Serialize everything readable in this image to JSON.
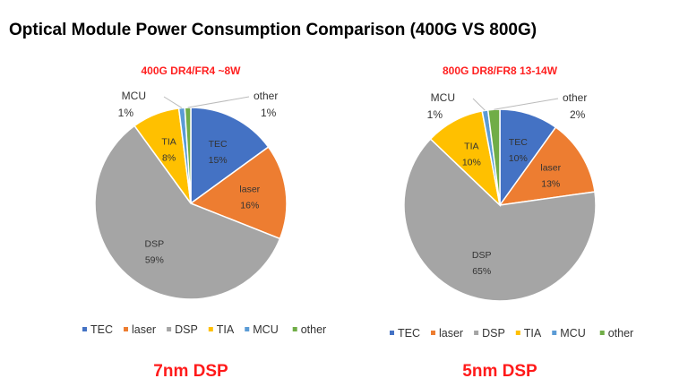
{
  "title": "Optical Module Power Consumption Comparison (400G VS 800G)",
  "colors": {
    "TEC": "#4472c4",
    "laser": "#ed7d31",
    "DSP": "#a5a5a5",
    "TIA": "#ffc000",
    "MCU": "#5b9bd5",
    "other": "#70ad47"
  },
  "chart_data": [
    {
      "type": "pie",
      "title": "400G DR4/FR4 ~8W",
      "caption": "7nm DSP",
      "categories": [
        "TEC",
        "laser",
        "DSP",
        "TIA",
        "MCU",
        "other"
      ],
      "values": [
        15,
        16,
        59,
        8,
        1,
        1
      ],
      "labels": [
        "15%",
        "16%",
        "59%",
        "8%",
        "1%",
        "1%"
      ],
      "start": "12 o'clock, clockwise",
      "legend": "bottom"
    },
    {
      "type": "pie",
      "title": "800G DR8/FR8 13-14W",
      "caption": "5nm DSP",
      "categories": [
        "TEC",
        "laser",
        "DSP",
        "TIA",
        "MCU",
        "other"
      ],
      "values": [
        10,
        13,
        65,
        10,
        1,
        2
      ],
      "labels": [
        "10%",
        "13%",
        "65%",
        "10%",
        "1%",
        "2%"
      ],
      "start": "12 o'clock, clockwise",
      "legend": "bottom"
    }
  ]
}
